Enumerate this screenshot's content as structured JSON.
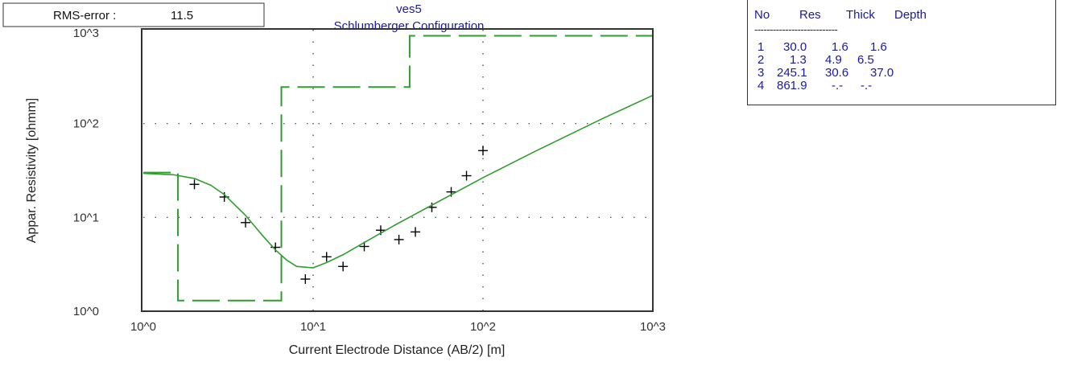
{
  "rms_label": "RMS-error :",
  "rms_value": "11.5",
  "chart_data": {
    "type": "scatter",
    "title": "ves5",
    "subtitle": "Schlumberger Configuration",
    "xlabel": "Current Electrode Distance (AB/2) [m]",
    "ylabel": "Appar. Resistivity [ohmm]",
    "x_scale": "log",
    "y_scale": "log",
    "xlim": [
      1,
      1000
    ],
    "ylim": [
      1,
      1000
    ],
    "x_ticks": [
      1,
      10,
      100,
      1000
    ],
    "y_ticks": [
      1,
      10,
      100,
      1000
    ],
    "x_tick_labels": [
      "10^0",
      "10^1",
      "10^2",
      "10^3"
    ],
    "y_tick_labels": [
      "10^0",
      "10^1",
      "10^2",
      "10^3"
    ],
    "grid": "dotted",
    "series": [
      {
        "type": "scatter",
        "marker": "+",
        "color": "#000000",
        "points": [
          [
            2.0,
            22.5
          ],
          [
            3.0,
            16.5
          ],
          [
            4.0,
            8.8
          ],
          [
            6.0,
            4.8
          ],
          [
            9.0,
            2.2
          ],
          [
            12.0,
            3.8
          ],
          [
            15.0,
            3.0
          ],
          [
            20.0,
            4.9
          ],
          [
            25.0,
            7.3
          ],
          [
            32.0,
            5.8
          ],
          [
            40.0,
            7.0
          ],
          [
            50.0,
            12.8
          ],
          [
            65.0,
            18.7
          ],
          [
            80.0,
            27.8
          ],
          [
            100.0,
            51.5
          ]
        ]
      },
      {
        "type": "line",
        "style": "solid",
        "color": "#2e9e2e",
        "points": [
          [
            1.0,
            29.5
          ],
          [
            1.5,
            28.5
          ],
          [
            2.0,
            26.0
          ],
          [
            2.5,
            22.0
          ],
          [
            3.0,
            17.5
          ],
          [
            4.0,
            10.5
          ],
          [
            5.0,
            6.5
          ],
          [
            6.0,
            4.5
          ],
          [
            7.0,
            3.5
          ],
          [
            8.0,
            3.0
          ],
          [
            10.0,
            2.9
          ],
          [
            12.0,
            3.3
          ],
          [
            15.0,
            4.0
          ],
          [
            20.0,
            5.4
          ],
          [
            30.0,
            8.2
          ],
          [
            50.0,
            13.5
          ],
          [
            100.0,
            26.5
          ],
          [
            200.0,
            50.0
          ],
          [
            500.0,
            112.0
          ],
          [
            1000.0,
            200.0
          ]
        ]
      },
      {
        "type": "step",
        "style": "dashed",
        "color": "#2e9e2e",
        "points": [
          [
            1.0,
            30.0
          ],
          [
            1.6,
            30.0
          ],
          [
            1.6,
            1.3
          ],
          [
            6.5,
            1.3
          ],
          [
            6.5,
            245.1
          ],
          [
            37.0,
            245.1
          ],
          [
            37.0,
            861.9
          ],
          [
            1000.0,
            861.9
          ]
        ]
      }
    ]
  },
  "layer_table": {
    "headers": [
      "No",
      "Res",
      "Thick",
      "Depth"
    ],
    "separator": "---------------------------",
    "rows": [
      [
        "1",
        "30.0",
        "1.6",
        "1.6"
      ],
      [
        "2",
        "1.3",
        "4.9",
        "6.5"
      ],
      [
        "3",
        "245.1",
        "30.6",
        "37.0"
      ],
      [
        "4",
        "861.9",
        "-.-",
        "-.-"
      ]
    ]
  }
}
